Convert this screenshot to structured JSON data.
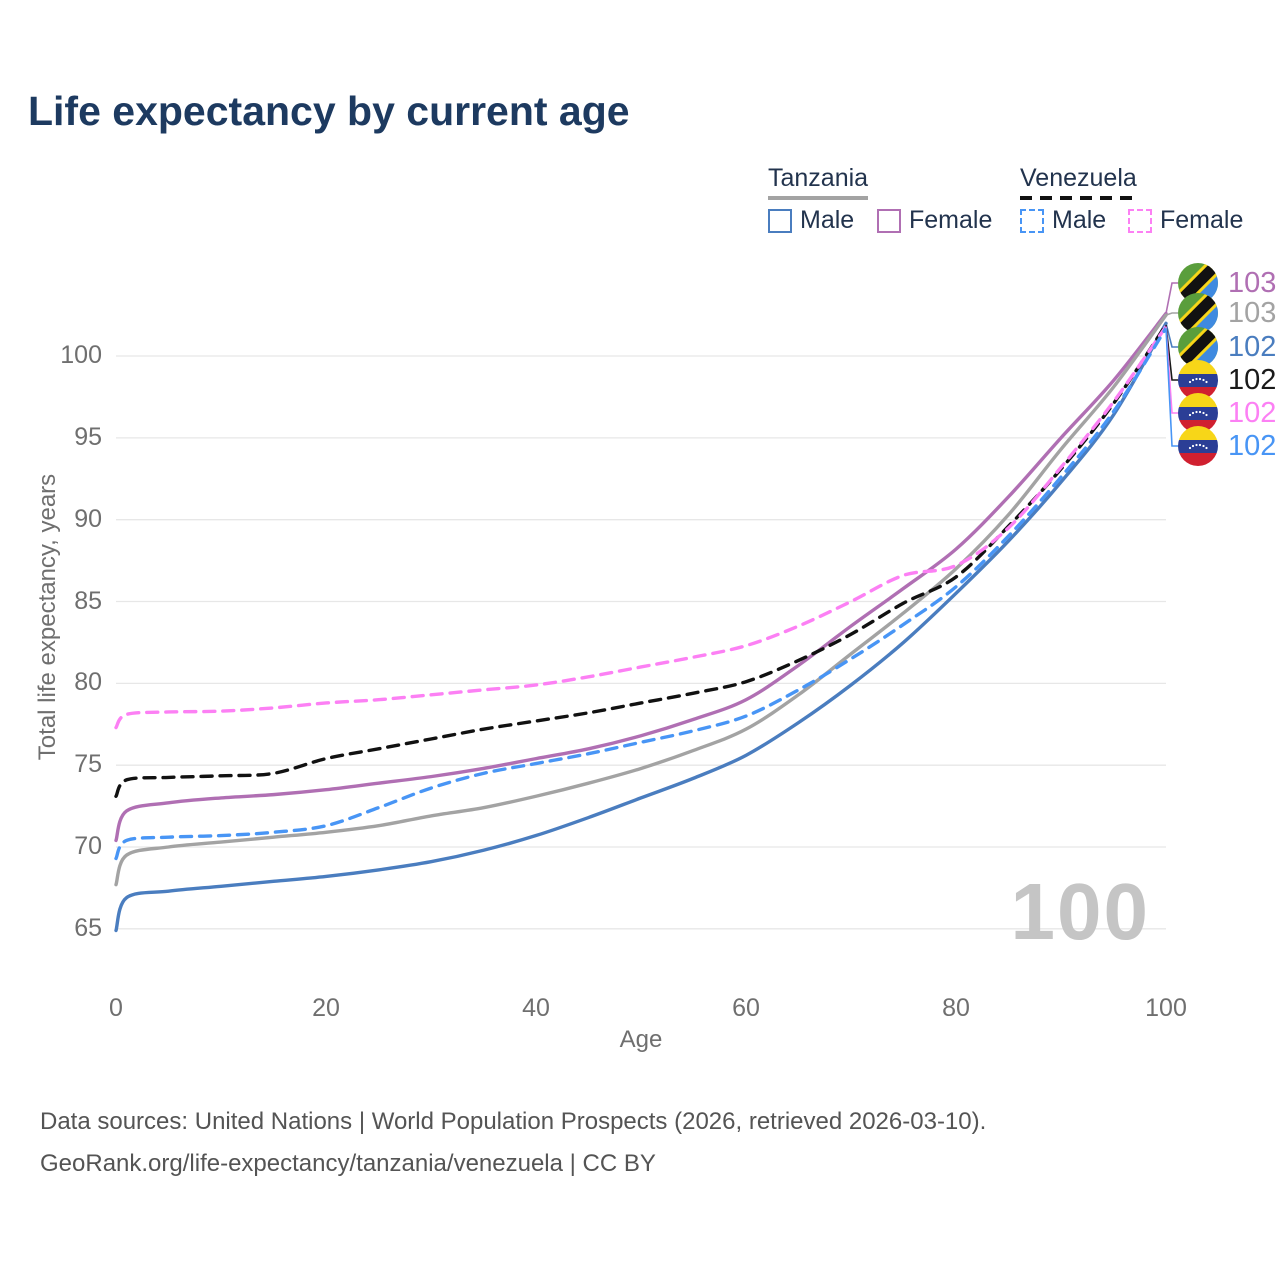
{
  "title": "Life expectancy by current age",
  "y_axis": {
    "label": "Total life expectancy, years",
    "ticks": [
      65,
      70,
      75,
      80,
      85,
      90,
      95,
      100
    ]
  },
  "x_axis": {
    "label": "Age",
    "ticks": [
      0,
      20,
      40,
      60,
      80,
      100
    ]
  },
  "legend": {
    "groups": [
      {
        "name": "Tanzania",
        "underline_style": "solid",
        "underline_color": "#a3a3a3",
        "items": [
          {
            "label": "Male",
            "color": "#4a7dbf",
            "dashed": false
          },
          {
            "label": "Female",
            "color": "#b06fb3",
            "dashed": false
          }
        ]
      },
      {
        "name": "Venezuela",
        "underline_style": "dashed",
        "underline_color": "#111111",
        "items": [
          {
            "label": "Male",
            "color": "#4895f5",
            "dashed": true
          },
          {
            "label": "Female",
            "color": "#fc80f4",
            "dashed": true
          }
        ]
      }
    ]
  },
  "chart_data": {
    "type": "line",
    "xlabel": "Age",
    "ylabel": "Total life expectancy, years",
    "xlim": [
      0,
      100
    ],
    "ylim": [
      63,
      104
    ],
    "grid": "horizontal",
    "x": [
      0,
      1,
      5,
      10,
      15,
      20,
      25,
      30,
      35,
      40,
      45,
      50,
      55,
      60,
      65,
      70,
      75,
      80,
      85,
      90,
      95,
      100
    ],
    "series": [
      {
        "id": "tz_female",
        "name": "Tanzania Female",
        "country": "Tanzania",
        "color": "#b06fb3",
        "dashed": false,
        "values": [
          70.4,
          72.2,
          72.7,
          73.0,
          73.2,
          73.5,
          73.9,
          74.3,
          74.8,
          75.4,
          76.0,
          76.8,
          77.8,
          79.0,
          81.1,
          83.5,
          85.8,
          88.2,
          91.4,
          95.0,
          98.5,
          102.6
        ],
        "end_label": "103"
      },
      {
        "id": "tz_total",
        "name": "Tanzania",
        "country": "Tanzania",
        "color": "#a3a3a3",
        "dashed": false,
        "values": [
          67.7,
          69.5,
          70.0,
          70.3,
          70.6,
          70.9,
          71.3,
          71.9,
          72.4,
          73.1,
          73.9,
          74.8,
          75.9,
          77.2,
          79.3,
          81.8,
          84.3,
          87.0,
          90.3,
          94.3,
          98.1,
          102.5
        ],
        "end_label": "103"
      },
      {
        "id": "tz_male",
        "name": "Tanzania Male",
        "country": "Tanzania",
        "color": "#4a7dbf",
        "dashed": false,
        "values": [
          64.9,
          66.9,
          67.3,
          67.6,
          67.9,
          68.2,
          68.6,
          69.1,
          69.8,
          70.7,
          71.8,
          73.0,
          74.2,
          75.6,
          77.6,
          79.9,
          82.5,
          85.5,
          88.7,
          92.3,
          96.4,
          102.0
        ],
        "end_label": "102"
      },
      {
        "id": "ve_total",
        "name": "Venezuela",
        "country": "Venezuela",
        "color": "#111111",
        "dashed": true,
        "values": [
          73.1,
          74.1,
          74.25,
          74.35,
          74.5,
          75.4,
          76.0,
          76.6,
          77.2,
          77.7,
          78.2,
          78.8,
          79.4,
          80.1,
          81.4,
          83.0,
          84.9,
          86.5,
          89.6,
          93.1,
          97.1,
          101.9
        ],
        "end_label": "102"
      },
      {
        "id": "ve_female",
        "name": "Venezuela Female",
        "country": "Venezuela",
        "color": "#fc80f4",
        "dashed": true,
        "values": [
          77.3,
          78.1,
          78.25,
          78.3,
          78.5,
          78.8,
          79.0,
          79.3,
          79.6,
          79.9,
          80.4,
          81.0,
          81.6,
          82.3,
          83.5,
          85.0,
          86.6,
          87.2,
          89.5,
          93.2,
          97.2,
          101.8
        ],
        "end_label": "102"
      },
      {
        "id": "ve_male",
        "name": "Venezuela Male",
        "country": "Venezuela",
        "color": "#4895f5",
        "dashed": true,
        "values": [
          69.3,
          70.4,
          70.6,
          70.7,
          70.9,
          71.3,
          72.4,
          73.6,
          74.5,
          75.1,
          75.7,
          76.4,
          77.1,
          78.0,
          79.6,
          81.5,
          83.6,
          85.9,
          89.0,
          92.6,
          96.6,
          101.7
        ],
        "end_label": "102"
      }
    ]
  },
  "end_labels": [
    {
      "flag": "tanzania",
      "value": "103",
      "color": "#b06fb3",
      "series": "tz_female"
    },
    {
      "flag": "tanzania",
      "value": "103",
      "color": "#a3a3a3",
      "series": "tz_total"
    },
    {
      "flag": "tanzania",
      "value": "102",
      "color": "#4a7dbf",
      "series": "tz_male"
    },
    {
      "flag": "venezuela",
      "value": "102",
      "color": "#1a1a1a",
      "series": "ve_total"
    },
    {
      "flag": "venezuela",
      "value": "102",
      "color": "#fc80f4",
      "series": "ve_female"
    },
    {
      "flag": "venezuela",
      "value": "102",
      "color": "#4895f5",
      "series": "ve_male"
    }
  ],
  "watermark": "100",
  "footer": {
    "line1": "Data sources: United Nations | World Population Prospects (2026, retrieved 2026-03-10).",
    "line2": "GeoRank.org/life-expectancy/tanzania/venezuela | CC BY"
  },
  "colors": {
    "title": "#1d3a60",
    "axis_text": "#6f6f6f",
    "gridline": "#e7e7e7",
    "legend_text": "#22334d",
    "watermark": "#c5c5c5",
    "footer_text": "#545454"
  }
}
